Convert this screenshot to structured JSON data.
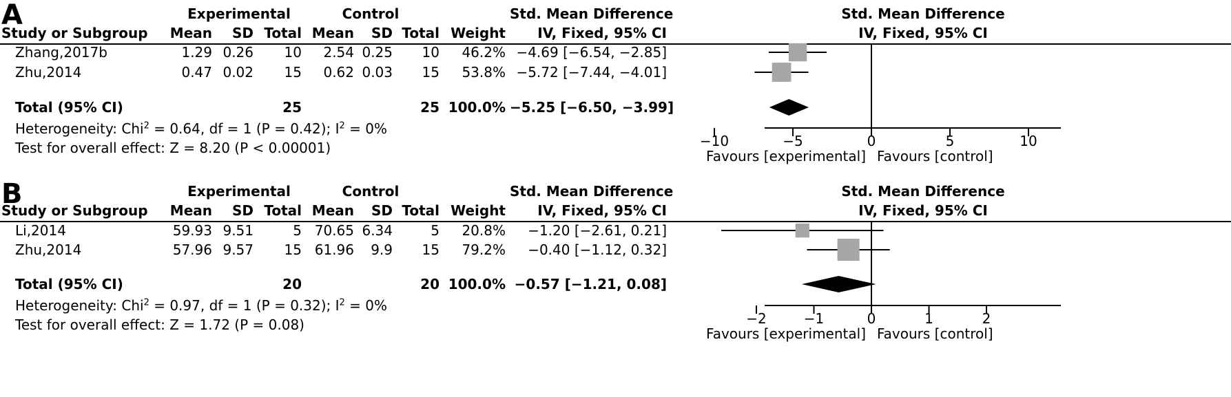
{
  "column_headers": {
    "experimental": "Experimental",
    "control": "Control",
    "smd": "Std. Mean Difference",
    "study": "Study or Subgroup",
    "mean": "Mean",
    "sd": "SD",
    "total": "Total",
    "weight": "Weight",
    "method": "IV, Fixed, 95% CI"
  },
  "panels": [
    {
      "letter": "A",
      "rows": [
        {
          "study": "Zhang,2017b",
          "e_mean": "1.29",
          "e_sd": "0.26",
          "e_total": "10",
          "c_mean": "2.54",
          "c_sd": "0.25",
          "c_total": "10",
          "weight": "46.2%",
          "ci": "−4.69 [−6.54, −2.85]"
        },
        {
          "study": "Zhu,2014",
          "e_mean": "0.47",
          "e_sd": "0.02",
          "e_total": "15",
          "c_mean": "0.62",
          "c_sd": "0.03",
          "c_total": "15",
          "weight": "53.8%",
          "ci": "−5.72 [−7.44, −4.01]"
        }
      ],
      "total": {
        "label": "Total (95% CI)",
        "e_total": "25",
        "c_total": "25",
        "weight": "100.0%",
        "ci": "−5.25 [−6.50, −3.99]"
      },
      "heterogeneity_prefix": "Heterogeneity: Chi",
      "heterogeneity_mid": " = 0.64, df = 1 (P = 0.42); I",
      "heterogeneity_suffix": " = 0%",
      "superscript": "2",
      "overall_effect": "Test for overall effect: Z = 8.20 (P < 0.00001)",
      "favours_left": "Favours [experimental]",
      "favours_right": "Favours [control]"
    },
    {
      "letter": "B",
      "rows": [
        {
          "study": "Li,2014",
          "e_mean": "59.93",
          "e_sd": "9.51",
          "e_total": "5",
          "c_mean": "70.65",
          "c_sd": "6.34",
          "c_total": "5",
          "weight": "20.8%",
          "ci": "−1.20 [−2.61, 0.21]"
        },
        {
          "study": "Zhu,2014",
          "e_mean": "57.96",
          "e_sd": "9.57",
          "e_total": "15",
          "c_mean": "61.96",
          "c_sd": "9.9",
          "c_total": "15",
          "weight": "79.2%",
          "ci": "−0.40 [−1.12, 0.32]"
        }
      ],
      "total": {
        "label": "Total (95% CI)",
        "e_total": "20",
        "c_total": "20",
        "weight": "100.0%",
        "ci": "−0.57 [−1.21, 0.08]"
      },
      "heterogeneity_prefix": "Heterogeneity: Chi",
      "heterogeneity_mid": " = 0.97, df = 1 (P = 0.32); I",
      "heterogeneity_suffix": " = 0%",
      "superscript": "2",
      "overall_effect": "Test for overall effect: Z = 1.72 (P = 0.08)",
      "favours_left": "Favours [experimental]",
      "favours_right": "Favours [control]"
    }
  ],
  "chart_data": [
    {
      "type": "forest",
      "title": "Std. Mean Difference",
      "subtitle": "IV, Fixed, 95% CI",
      "xlim": [
        -12.5,
        12.5
      ],
      "ticks": [
        -10,
        -5,
        0,
        5,
        10
      ],
      "tick_labels": [
        "−10",
        "−5",
        "0",
        "5",
        "10"
      ],
      "studies": [
        {
          "name": "Zhang,2017b",
          "estimate": -4.69,
          "lower": -6.54,
          "upper": -2.85,
          "weight": 46.2
        },
        {
          "name": "Zhu,2014",
          "estimate": -5.72,
          "lower": -7.44,
          "upper": -4.01,
          "weight": 53.8
        }
      ],
      "pooled": {
        "estimate": -5.25,
        "lower": -6.5,
        "upper": -3.99
      },
      "xlabel_left": "Favours [experimental]",
      "xlabel_right": "Favours [control]",
      "colors": {
        "box": "#a6a6a6",
        "diamond": "#000000",
        "line": "#000000"
      }
    },
    {
      "type": "forest",
      "title": "Std. Mean Difference",
      "subtitle": "IV, Fixed, 95% CI",
      "xlim": [
        -3.2,
        3.2
      ],
      "ticks": [
        -2,
        -1,
        0,
        1,
        2
      ],
      "tick_labels": [
        "−2",
        "−1",
        "0",
        "1",
        "2"
      ],
      "studies": [
        {
          "name": "Li,2014",
          "estimate": -1.2,
          "lower": -2.61,
          "upper": 0.21,
          "weight": 20.8
        },
        {
          "name": "Zhu,2014",
          "estimate": -0.4,
          "lower": -1.12,
          "upper": 0.32,
          "weight": 79.2
        }
      ],
      "pooled": {
        "estimate": -0.57,
        "lower": -1.21,
        "upper": 0.08
      },
      "xlabel_left": "Favours [experimental]",
      "xlabel_right": "Favours [control]",
      "colors": {
        "box": "#a6a6a6",
        "diamond": "#000000",
        "line": "#000000"
      }
    }
  ]
}
